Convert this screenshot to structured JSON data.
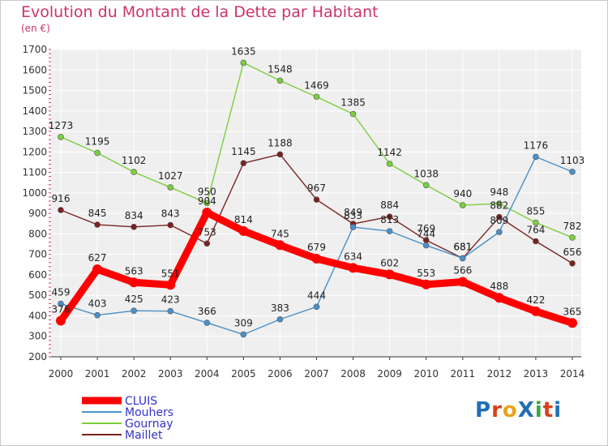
{
  "title": "Evolution du Montant de la Dette par Habitant",
  "subtitle": "(en €)",
  "logo": {
    "text": "ProXiti",
    "colors": [
      "#1f6fb5",
      "#d6411a",
      "#e8a21c",
      "#1f6fb5",
      "#3aa640",
      "#d6411a",
      "#1f6fb5"
    ]
  },
  "chart_data": {
    "type": "line",
    "x": [
      "2000",
      "2001",
      "2002",
      "2003",
      "2004",
      "2005",
      "2006",
      "2007",
      "2008",
      "2009",
      "2010",
      "2011",
      "2012",
      "2013",
      "2014"
    ],
    "ylim": [
      200,
      1700
    ],
    "yticks": [
      200,
      300,
      400,
      500,
      600,
      700,
      800,
      900,
      1000,
      1100,
      1200,
      1300,
      1400,
      1500,
      1600,
      1700
    ],
    "grid": true,
    "legend_position": "bottom-left",
    "series": [
      {
        "name": "CLUIS",
        "color": "#ff0000",
        "values": [
          376,
          627,
          563,
          551,
          904,
          814,
          745,
          679,
          634,
          602,
          553,
          566,
          488,
          422,
          365
        ],
        "labels": [
          "376",
          "627",
          "563",
          "551",
          "904",
          "814",
          "745",
          "679",
          "634",
          "602",
          "553",
          "566",
          "488",
          "422",
          "365"
        ]
      },
      {
        "name": "Mouhers",
        "color": "#4a90c8",
        "values": [
          459,
          403,
          425,
          423,
          366,
          309,
          383,
          444,
          833,
          813,
          744,
          681,
          809,
          1176,
          1103
        ],
        "labels": [
          "459",
          "403",
          "425",
          "423",
          "366",
          "309",
          "383",
          "444",
          "833",
          "813",
          "744",
          "681",
          "809",
          "1176",
          "1103"
        ]
      },
      {
        "name": "Gournay",
        "color": "#7ccf3c",
        "values": [
          1273,
          1195,
          1102,
          1027,
          950,
          1635,
          1548,
          1469,
          1385,
          1142,
          1038,
          940,
          948,
          855,
          782
        ],
        "labels": [
          "1273",
          "1195",
          "1102",
          "1027",
          "950",
          "1635",
          "1548",
          "1469",
          "1385",
          "1142",
          "1038",
          "940",
          "948",
          "855",
          "782"
        ]
      },
      {
        "name": "Maillet",
        "color": "#7a2222",
        "values": [
          916,
          845,
          834,
          843,
          753,
          1145,
          1188,
          967,
          849,
          884,
          769,
          681,
          882,
          764,
          656
        ],
        "labels": [
          "916",
          "845",
          "834",
          "843",
          "753",
          "1145",
          "1188",
          "967",
          "849",
          "884",
          "769",
          "681",
          "882",
          "764",
          "656"
        ]
      }
    ]
  }
}
